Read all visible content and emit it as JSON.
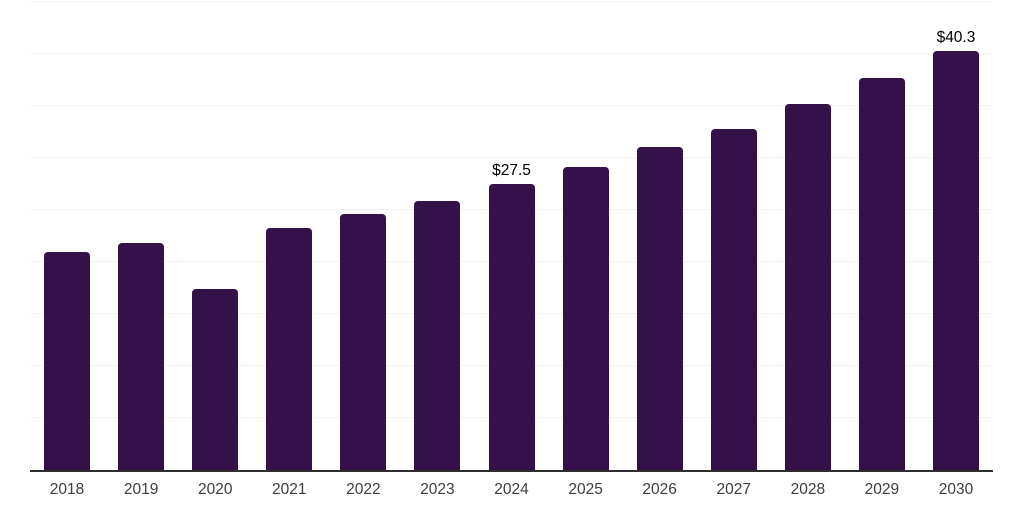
{
  "chart_data": {
    "type": "bar",
    "categories": [
      "2018",
      "2019",
      "2020",
      "2021",
      "2022",
      "2023",
      "2024",
      "2025",
      "2026",
      "2027",
      "2028",
      "2029",
      "2030"
    ],
    "values": [
      21.0,
      21.8,
      17.4,
      23.3,
      24.6,
      25.9,
      27.5,
      29.1,
      31.1,
      32.8,
      35.2,
      37.7,
      40.3
    ],
    "point_labels": [
      "",
      "",
      "",
      "",
      "",
      "",
      "$27.5",
      "",
      "",
      "",
      "",
      "",
      "$40.3"
    ],
    "title": "",
    "xlabel": "",
    "ylabel": "",
    "ylim": [
      0,
      45
    ],
    "gridline_step": 5,
    "grid": "horizontal-only",
    "y_tick_labels_visible": false,
    "legend": "none",
    "colors": {
      "bar": "#341249",
      "axis_line": "#2e2e2e",
      "gridline": "#f2f2f2",
      "value_label": "#000000",
      "tick_label": "#3d3d3d",
      "background": "#ffffff"
    }
  }
}
